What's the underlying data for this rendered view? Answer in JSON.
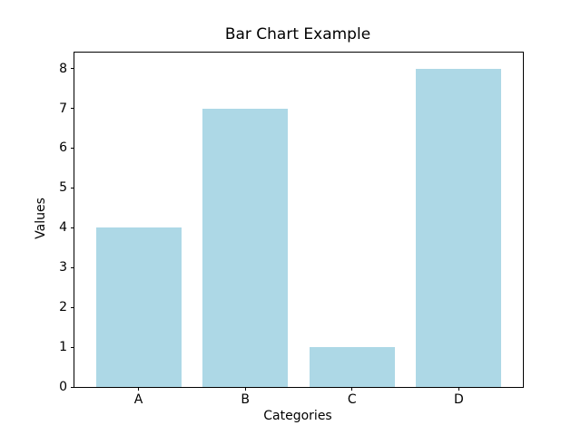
{
  "figure": {
    "background": "#ffffff",
    "text_color": "#000000"
  },
  "chart_data": {
    "type": "bar",
    "title": "Bar Chart Example",
    "xlabel": "Categories",
    "ylabel": "Values",
    "categories": [
      "A",
      "B",
      "C",
      "D"
    ],
    "values": [
      4,
      7,
      1,
      8
    ],
    "yticks": [
      0,
      1,
      2,
      3,
      4,
      5,
      6,
      7,
      8
    ],
    "ylim": [
      0,
      8.4
    ],
    "xlim": [
      -0.6,
      3.6
    ],
    "bar_width_fraction": 0.8,
    "bar_color": "#ADD8E6",
    "grid": false,
    "legend": "none",
    "frame": "full-box"
  }
}
